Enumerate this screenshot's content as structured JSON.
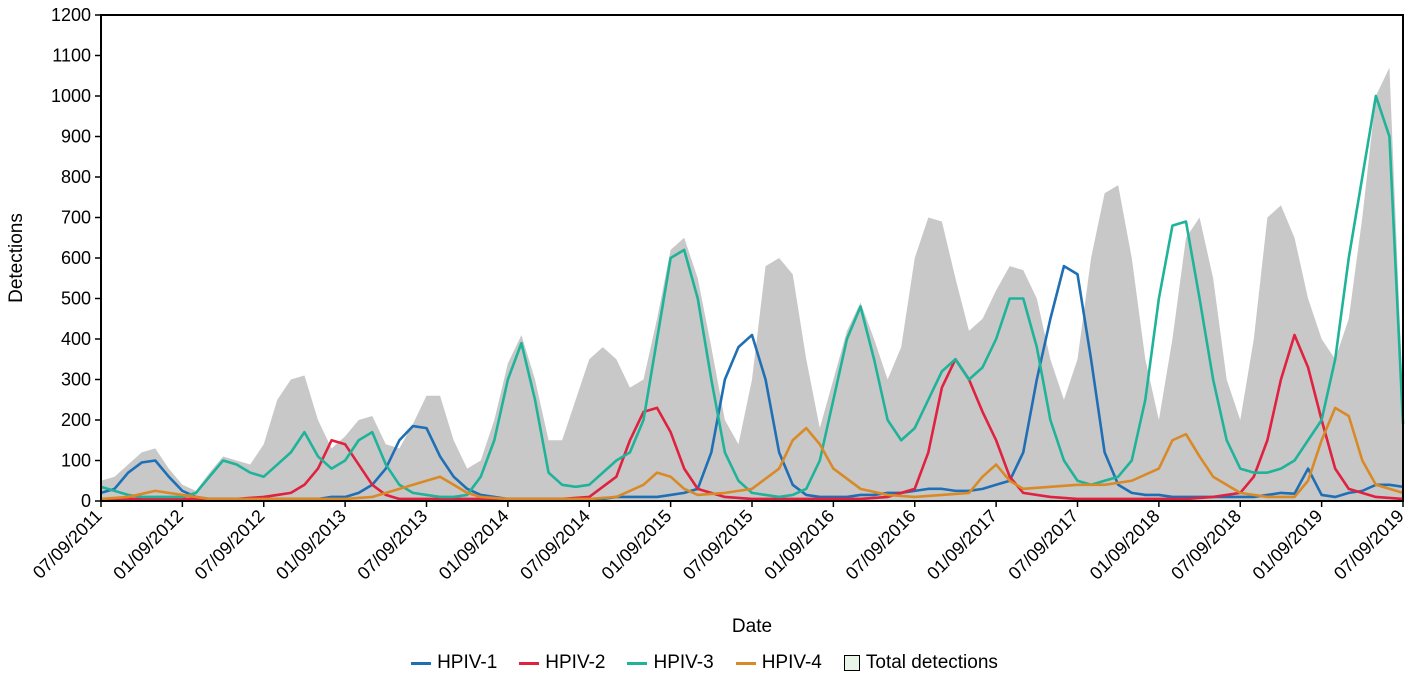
{
  "chart_data": {
    "type": "line",
    "xlabel": "Date",
    "ylabel": "Detections",
    "ylim": [
      0,
      1200
    ],
    "y_ticks": [
      0,
      100,
      200,
      300,
      400,
      500,
      600,
      700,
      800,
      900,
      1000,
      1100,
      1200
    ],
    "x_tick_labels": [
      "07/09/2011",
      "01/09/2012",
      "07/09/2012",
      "01/09/2013",
      "07/09/2013",
      "01/09/2014",
      "07/09/2014",
      "01/09/2015",
      "07/09/2015",
      "01/09/2016",
      "07/09/2016",
      "01/09/2017",
      "07/09/2017",
      "01/09/2018",
      "07/09/2018",
      "01/09/2019",
      "07/09/2019"
    ],
    "x_unit": "months since 07/2011 (tick every 6 months)",
    "grid": false,
    "legend_position": "bottom",
    "series": [
      {
        "name": "HPIV-1",
        "color": "#1f6fb5",
        "style": "line",
        "x": [
          0,
          1,
          2,
          3,
          4,
          5,
          6,
          7,
          8,
          9,
          10,
          11,
          12,
          13,
          14,
          15,
          16,
          17,
          18,
          19,
          20,
          21,
          22,
          23,
          24,
          25,
          26,
          27,
          28,
          29,
          30,
          31,
          32,
          33,
          34,
          35,
          36,
          37,
          38,
          39,
          40,
          41,
          42,
          43,
          44,
          45,
          46,
          47,
          48,
          49,
          50,
          51,
          52,
          53,
          54,
          55,
          56,
          57,
          58,
          59,
          60,
          61,
          62,
          63,
          64,
          65,
          66,
          67,
          68,
          69,
          70,
          71,
          72,
          73,
          74,
          75,
          76,
          77,
          78,
          79,
          80,
          81,
          82,
          83,
          84,
          85,
          86,
          87,
          88,
          89,
          90,
          91,
          92,
          93,
          94,
          95,
          96
        ],
        "values": [
          20,
          30,
          70,
          95,
          100,
          60,
          25,
          10,
          5,
          5,
          5,
          5,
          5,
          5,
          5,
          5,
          5,
          10,
          10,
          20,
          40,
          80,
          150,
          185,
          180,
          110,
          60,
          30,
          15,
          10,
          5,
          5,
          5,
          5,
          5,
          5,
          5,
          5,
          10,
          10,
          10,
          10,
          15,
          20,
          30,
          120,
          300,
          380,
          410,
          300,
          120,
          40,
          15,
          10,
          10,
          10,
          15,
          15,
          20,
          20,
          25,
          30,
          30,
          25,
          25,
          30,
          40,
          50,
          120,
          300,
          450,
          580,
          560,
          350,
          120,
          40,
          20,
          15,
          15,
          10,
          10,
          10,
          10,
          10,
          10,
          10,
          15,
          20,
          18,
          80,
          15,
          10,
          20,
          25,
          40,
          40,
          35
        ]
      },
      {
        "name": "HPIV-2",
        "color": "#e0213f",
        "style": "line",
        "x": [
          0,
          2,
          4,
          6,
          8,
          10,
          12,
          13,
          14,
          15,
          16,
          17,
          18,
          19,
          20,
          21,
          22,
          24,
          26,
          28,
          30,
          32,
          34,
          36,
          38,
          39,
          40,
          41,
          42,
          43,
          44,
          46,
          48,
          50,
          52,
          54,
          56,
          58,
          60,
          61,
          62,
          63,
          64,
          65,
          66,
          67,
          68,
          70,
          72,
          74,
          76,
          78,
          80,
          82,
          84,
          85,
          86,
          87,
          88,
          89,
          90,
          91,
          92,
          94,
          96
        ],
        "values": [
          5,
          5,
          5,
          5,
          5,
          5,
          10,
          15,
          20,
          40,
          80,
          150,
          140,
          90,
          40,
          15,
          5,
          5,
          5,
          5,
          5,
          5,
          5,
          10,
          60,
          150,
          220,
          230,
          170,
          80,
          30,
          10,
          5,
          5,
          5,
          5,
          5,
          10,
          30,
          120,
          280,
          350,
          300,
          220,
          150,
          60,
          20,
          10,
          5,
          5,
          5,
          5,
          5,
          10,
          20,
          60,
          150,
          300,
          410,
          330,
          200,
          80,
          30,
          10,
          5
        ]
      },
      {
        "name": "HPIV-3",
        "color": "#1fb39a",
        "style": "line",
        "x": [
          0,
          1,
          2,
          3,
          4,
          5,
          6,
          7,
          8,
          9,
          10,
          11,
          12,
          13,
          14,
          15,
          16,
          17,
          18,
          19,
          20,
          21,
          22,
          23,
          24,
          25,
          26,
          27,
          28,
          29,
          30,
          31,
          32,
          33,
          34,
          35,
          36,
          37,
          38,
          39,
          40,
          41,
          42,
          43,
          44,
          45,
          46,
          47,
          48,
          49,
          50,
          51,
          52,
          53,
          54,
          55,
          56,
          57,
          58,
          59,
          60,
          61,
          62,
          63,
          64,
          65,
          66,
          67,
          68,
          69,
          70,
          71,
          72,
          73,
          74,
          75,
          76,
          77,
          78,
          79,
          80,
          81,
          82,
          83,
          84,
          85,
          86,
          87,
          88,
          89,
          90,
          91,
          92,
          93,
          94,
          95,
          96
        ],
        "values": [
          35,
          25,
          15,
          10,
          10,
          10,
          10,
          20,
          60,
          100,
          90,
          70,
          60,
          90,
          120,
          170,
          110,
          80,
          100,
          150,
          170,
          90,
          40,
          20,
          15,
          10,
          10,
          15,
          60,
          150,
          300,
          390,
          250,
          70,
          40,
          35,
          40,
          70,
          100,
          120,
          200,
          400,
          600,
          620,
          500,
          300,
          120,
          50,
          20,
          15,
          10,
          15,
          30,
          100,
          250,
          400,
          480,
          350,
          200,
          150,
          180,
          250,
          320,
          350,
          300,
          330,
          400,
          500,
          500,
          380,
          200,
          100,
          50,
          40,
          50,
          60,
          100,
          250,
          500,
          680,
          690,
          500,
          300,
          150,
          80,
          70,
          70,
          80,
          100,
          150,
          200,
          350,
          600,
          800,
          1000,
          900,
          190
        ]
      },
      {
        "name": "HPIV-4",
        "color": "#d98a27",
        "style": "line",
        "x": [
          0,
          2,
          4,
          6,
          8,
          10,
          12,
          14,
          16,
          18,
          20,
          22,
          24,
          25,
          26,
          27,
          28,
          30,
          32,
          34,
          36,
          38,
          40,
          41,
          42,
          43,
          44,
          46,
          48,
          50,
          51,
          52,
          53,
          54,
          56,
          58,
          60,
          62,
          64,
          65,
          66,
          67,
          68,
          70,
          72,
          74,
          76,
          78,
          79,
          80,
          81,
          82,
          84,
          86,
          88,
          89,
          90,
          91,
          92,
          93,
          94,
          96
        ],
        "values": [
          5,
          10,
          25,
          15,
          5,
          5,
          5,
          5,
          5,
          5,
          10,
          30,
          50,
          60,
          40,
          20,
          10,
          5,
          5,
          5,
          5,
          10,
          40,
          70,
          60,
          30,
          15,
          20,
          30,
          80,
          150,
          180,
          140,
          80,
          30,
          15,
          10,
          15,
          20,
          60,
          90,
          50,
          30,
          35,
          40,
          40,
          50,
          80,
          150,
          165,
          110,
          60,
          20,
          10,
          10,
          50,
          150,
          230,
          210,
          100,
          40,
          20
        ]
      },
      {
        "name": "Total detections",
        "color": "#c8c8c8",
        "style": "area",
        "x": [
          0,
          1,
          2,
          3,
          4,
          5,
          6,
          7,
          8,
          9,
          10,
          11,
          12,
          13,
          14,
          15,
          16,
          17,
          18,
          19,
          20,
          21,
          22,
          23,
          24,
          25,
          26,
          27,
          28,
          29,
          30,
          31,
          32,
          33,
          34,
          35,
          36,
          37,
          38,
          39,
          40,
          41,
          42,
          43,
          44,
          45,
          46,
          47,
          48,
          49,
          50,
          51,
          52,
          53,
          54,
          55,
          56,
          57,
          58,
          59,
          60,
          61,
          62,
          63,
          64,
          65,
          66,
          67,
          68,
          69,
          70,
          71,
          72,
          73,
          74,
          75,
          76,
          77,
          78,
          79,
          80,
          81,
          82,
          83,
          84,
          85,
          86,
          87,
          88,
          89,
          90,
          91,
          92,
          93,
          94,
          95,
          96
        ],
        "values": [
          50,
          60,
          90,
          120,
          130,
          80,
          40,
          25,
          70,
          110,
          100,
          90,
          140,
          250,
          300,
          310,
          200,
          130,
          160,
          200,
          210,
          140,
          130,
          190,
          260,
          260,
          150,
          80,
          100,
          200,
          340,
          410,
          300,
          150,
          150,
          250,
          350,
          380,
          350,
          280,
          300,
          450,
          620,
          650,
          550,
          380,
          200,
          140,
          300,
          580,
          600,
          560,
          350,
          180,
          300,
          420,
          490,
          400,
          300,
          380,
          600,
          700,
          690,
          550,
          420,
          450,
          520,
          580,
          570,
          500,
          350,
          250,
          350,
          600,
          760,
          780,
          600,
          350,
          200,
          400,
          650,
          700,
          550,
          300,
          200,
          400,
          700,
          730,
          650,
          500,
          400,
          350,
          450,
          700,
          1000,
          1070,
          250
        ]
      }
    ]
  },
  "legend": {
    "items": [
      {
        "label": "HPIV-1",
        "color": "#1f6fb5"
      },
      {
        "label": "HPIV-2",
        "color": "#e0213f"
      },
      {
        "label": "HPIV-3",
        "color": "#1fb39a"
      },
      {
        "label": "HPIV-4",
        "color": "#d98a27"
      },
      {
        "label": "Total detections",
        "color": "#e8f5e8"
      }
    ]
  }
}
